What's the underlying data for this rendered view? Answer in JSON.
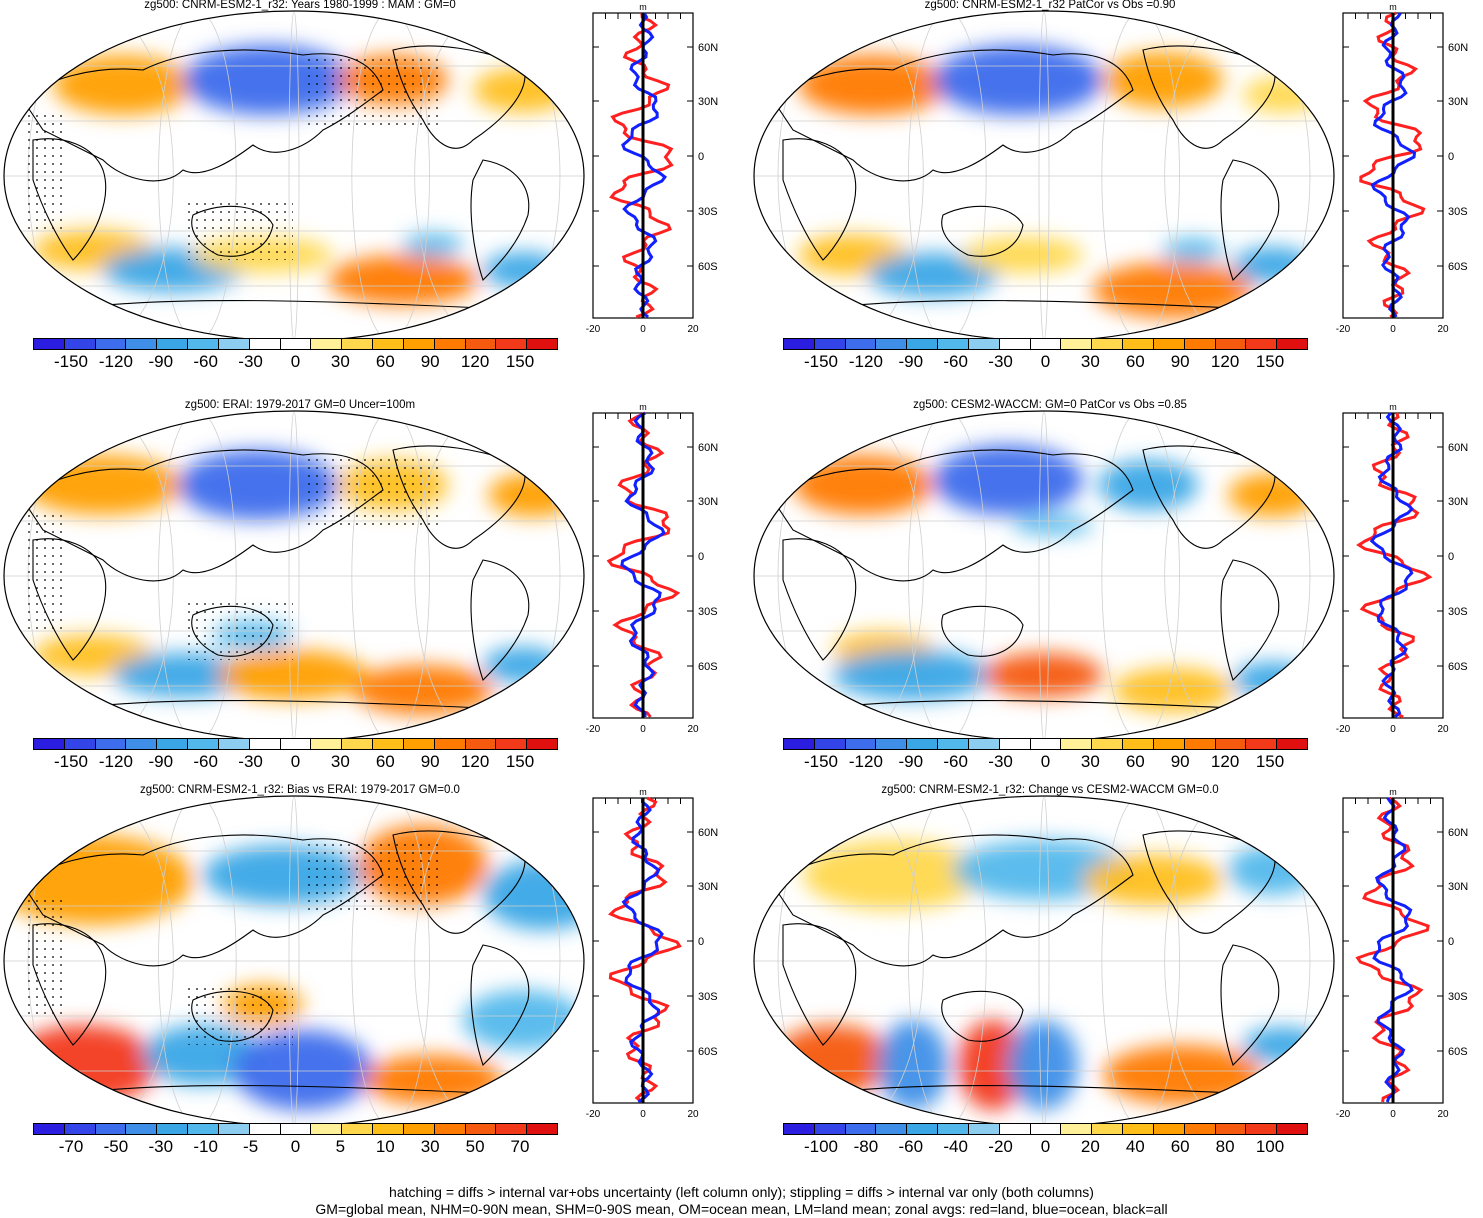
{
  "panels": [
    {
      "id": "p1",
      "title": "zg500: CNRM-ESM2-1_r32: Years 1980-1999 : MAM : GM=0",
      "cbar_ticks": [
        "-150",
        "-120",
        "-90",
        "-60",
        "-30",
        "0",
        "30",
        "60",
        "90",
        "120",
        "150"
      ],
      "zonal_x_ticks": [
        "-20",
        "0",
        "20"
      ],
      "zonal_lat_ticks": [
        "60N",
        "30N",
        "0",
        "30S",
        "60S"
      ],
      "zonal_unit": "m",
      "stipple": true
    },
    {
      "id": "p2",
      "title": "zg500: CNRM-ESM2-1_r32 PatCor vs Obs =0.90",
      "cbar_ticks": [
        "-150",
        "-120",
        "-90",
        "-60",
        "-30",
        "0",
        "30",
        "60",
        "90",
        "120",
        "150"
      ],
      "zonal_x_ticks": [
        "-20",
        "0",
        "20"
      ],
      "zonal_lat_ticks": [
        "60N",
        "30N",
        "0",
        "30S",
        "60S"
      ],
      "zonal_unit": "m",
      "stipple": false
    },
    {
      "id": "p3",
      "title": "zg500: ERAI: 1979-2017 GM=0 Uncer=100m",
      "cbar_ticks": [
        "-150",
        "-120",
        "-90",
        "-60",
        "-30",
        "0",
        "30",
        "60",
        "90",
        "120",
        "150"
      ],
      "zonal_x_ticks": [
        "-20",
        "0",
        "20"
      ],
      "zonal_lat_ticks": [
        "60N",
        "30N",
        "0",
        "30S",
        "60S"
      ],
      "zonal_unit": "m",
      "stipple": true
    },
    {
      "id": "p4",
      "title": "zg500: CESM2-WACCM: GM=0 PatCor vs Obs =0.85",
      "cbar_ticks": [
        "-150",
        "-120",
        "-90",
        "-60",
        "-30",
        "0",
        "30",
        "60",
        "90",
        "120",
        "150"
      ],
      "zonal_x_ticks": [
        "-20",
        "0",
        "20"
      ],
      "zonal_lat_ticks": [
        "60N",
        "30N",
        "0",
        "30S",
        "60S"
      ],
      "zonal_unit": "m",
      "stipple": false
    },
    {
      "id": "p5",
      "title": "zg500: CNRM-ESM2-1_r32: Bias vs ERAI: 1979-2017 GM=0.0",
      "cbar_ticks": [
        "-70",
        "-50",
        "-30",
        "-10",
        "-5",
        "0",
        "5",
        "10",
        "30",
        "50",
        "70"
      ],
      "zonal_x_ticks": [
        "-20",
        "0",
        "20"
      ],
      "zonal_lat_ticks": [
        "60N",
        "30N",
        "0",
        "30S",
        "60S"
      ],
      "zonal_unit": "m",
      "stipple": true
    },
    {
      "id": "p6",
      "title": "zg500: CNRM-ESM2-1_r32: Change vs CESM2-WACCM GM=0.0",
      "cbar_ticks": [
        "-100",
        "-80",
        "-60",
        "-40",
        "-20",
        "0",
        "20",
        "40",
        "60",
        "80",
        "100"
      ],
      "zonal_x_ticks": [
        "-20",
        "0",
        "20"
      ],
      "zonal_lat_ticks": [
        "60N",
        "30N",
        "0",
        "30S",
        "60S"
      ],
      "zonal_unit": "m",
      "stipple": false
    }
  ],
  "colors": {
    "palette": [
      "#2b1ee0",
      "#3344e8",
      "#3d6cec",
      "#3f8fe8",
      "#3aa6e6",
      "#52b8ec",
      "#8ccdf0",
      "#ffffff",
      "#ffffff",
      "#fff19a",
      "#ffd84d",
      "#ffbf1a",
      "#ff9f00",
      "#ff7a00",
      "#f55a0f",
      "#f23a1a",
      "#e01010"
    ],
    "land_line": "#ff2020",
    "ocean_line": "#1020ff",
    "all_line": "#000000"
  },
  "footer": {
    "line1": "hatching = diffs > internal var+obs uncertainty (left column only); stippling = diffs > internal var only (both columns)",
    "line2": "GM=global mean, NHM=0-90N mean, SHM=0-90S mean, OM=ocean mean, LM=land mean; zonal avgs: red=land, blue=ocean, black=all"
  }
}
